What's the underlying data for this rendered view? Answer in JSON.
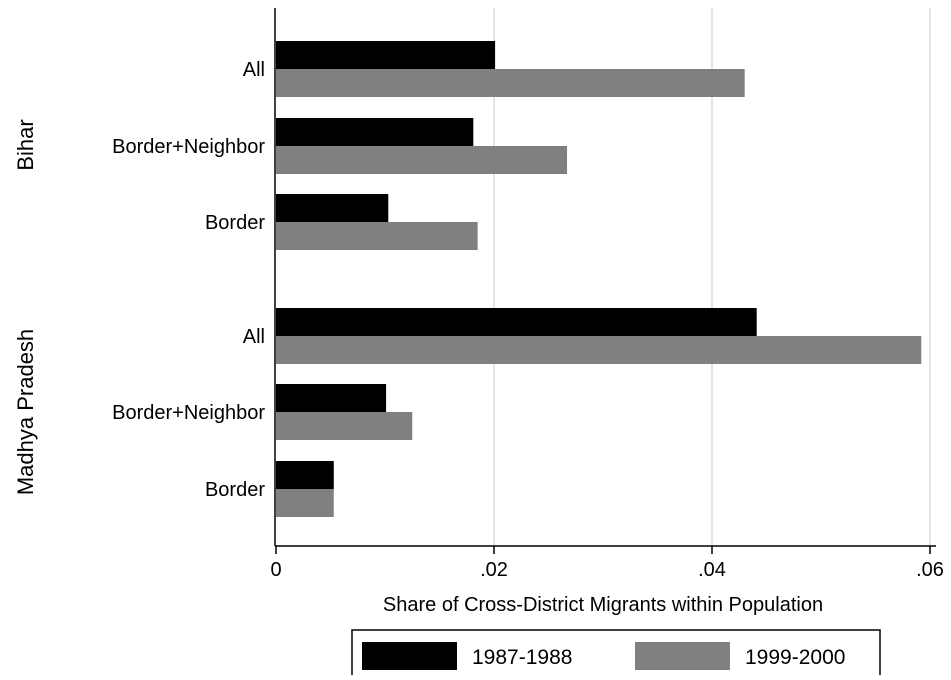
{
  "chart_data": {
    "type": "bar",
    "orientation": "horizontal",
    "xlabel": "Share of Cross-District Migrants within Population",
    "xlim": [
      0,
      0.06
    ],
    "x_ticks": [
      {
        "value": 0,
        "label": "0"
      },
      {
        "value": 0.02,
        "label": ".02"
      },
      {
        "value": 0.04,
        "label": ".04"
      },
      {
        "value": 0.06,
        "label": ".06"
      }
    ],
    "grid": true,
    "legend_position": "bottom",
    "groups": [
      {
        "name": "Bihar",
        "categories": [
          "All",
          "Border+Neighbor",
          "Border"
        ]
      },
      {
        "name": "Madhya Pradesh",
        "categories": [
          "All",
          "Border+Neighbor",
          "Border"
        ]
      }
    ],
    "series": [
      {
        "name": "1987-1988",
        "color": "#000000",
        "values": [
          [
            0.0201,
            0.0181,
            0.0103
          ],
          [
            0.0441,
            0.0101,
            0.0053
          ]
        ]
      },
      {
        "name": "1999-2000",
        "color": "#808080",
        "values": [
          [
            0.043,
            0.0267,
            0.0185
          ],
          [
            0.0592,
            0.0125,
            0.0053
          ]
        ]
      }
    ]
  }
}
